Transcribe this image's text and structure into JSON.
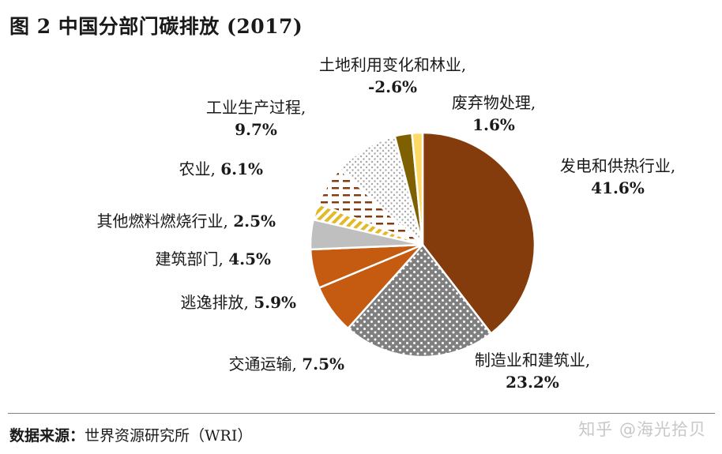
{
  "title": "图 2  中国分部门碳排放 (2017)",
  "source": {
    "label": "数据来源：",
    "text": "世界资源研究所（WRI）"
  },
  "watermark": "知乎 @海光拾贝",
  "chart_data": {
    "type": "pie",
    "title": "图 2  中国分部门碳排放 (2017)",
    "slices": [
      {
        "name": "发电和供热行业",
        "label": "发电和供热行业,",
        "value": 41.6,
        "display": "41.6%",
        "color": "#843c0c",
        "pattern": "solid"
      },
      {
        "name": "制造业和建筑业",
        "label": "制造业和建筑业,",
        "value": 23.2,
        "display": "23.2%",
        "color": "#7f7f7f",
        "pattern": "white-dots"
      },
      {
        "name": "交通运输",
        "label": "交通运输,",
        "value": 7.5,
        "display": "7.5%",
        "color": "#c55a11",
        "pattern": "solid"
      },
      {
        "name": "逃逸排放",
        "label": "逃逸排放,",
        "value": 5.9,
        "display": "5.9%",
        "color": "#c55a11",
        "pattern": "solid"
      },
      {
        "name": "建筑部门",
        "label": "建筑部门,",
        "value": 4.5,
        "display": "4.5%",
        "color": "#bfbfbf",
        "pattern": "solid"
      },
      {
        "name": "其他燃料燃烧行业",
        "label": "其他燃料燃烧行业,",
        "value": 2.5,
        "display": "2.5%",
        "color": "#e2b928",
        "pattern": "diagonal-stripes"
      },
      {
        "name": "农业",
        "label": "农业,",
        "value": 6.1,
        "display": "6.1%",
        "color": "#f4b183",
        "pattern": "solid-plus-dashes"
      },
      {
        "name": "工业生产过程",
        "label": "工业生产过程,",
        "value": 9.7,
        "display": "9.7%",
        "color": "#d9d9d9",
        "pattern": "grey-dots"
      },
      {
        "name": "土地利用变化和林业",
        "label": "土地利用变化和林业,",
        "value": -2.6,
        "display": "-2.6%",
        "color": "#7f6000",
        "pattern": "solid"
      },
      {
        "name": "废弃物处理",
        "label": "废弃物处理,",
        "value": 1.6,
        "display": "1.6%",
        "color": "#ffd966",
        "pattern": "solid"
      }
    ],
    "legend": "none",
    "data_labels": "outside"
  }
}
